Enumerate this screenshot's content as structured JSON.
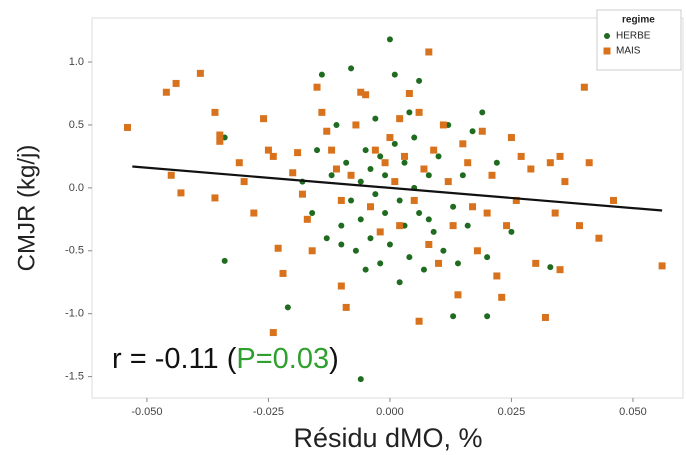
{
  "chart_data": {
    "type": "scatter",
    "x_label": "Résidu dMO, %",
    "y_label": "CMJR (kg/j)",
    "xlim": [
      -0.0613,
      0.0603
    ],
    "ylim": [
      -1.67,
      1.35
    ],
    "xticks": [
      {
        "value": -0.05,
        "label": "-0.050"
      },
      {
        "value": -0.025,
        "label": "-0.025"
      },
      {
        "value": 0,
        "label": "0.000"
      },
      {
        "value": 0.025,
        "label": "0.025"
      },
      {
        "value": 0.05,
        "label": "0.050"
      }
    ],
    "yticks": [
      {
        "value": 1,
        "label": "1.0"
      },
      {
        "value": 0.5,
        "label": "0.5"
      },
      {
        "value": 0,
        "label": "0.0"
      },
      {
        "value": -0.5,
        "label": "-0.5"
      },
      {
        "value": -1,
        "label": "-1.0"
      },
      {
        "value": -1.5,
        "label": "-1.5"
      }
    ],
    "legend_title": "regime",
    "legend_position": "upper right",
    "series": [
      {
        "name": "HERBE",
        "color": "#1f6b1f",
        "marker": "circle",
        "x": [
          -0.034,
          -0.034,
          -0.021,
          -0.018,
          -0.016,
          -0.015,
          -0.014,
          -0.013,
          -0.012,
          -0.011,
          -0.01,
          -0.009,
          -0.008,
          -0.008,
          -0.007,
          -0.006,
          -0.006,
          -0.005,
          -0.005,
          -0.004,
          -0.004,
          -0.003,
          -0.003,
          -0.002,
          -0.002,
          -0.001,
          -0.001,
          0.0,
          0.0,
          0.001,
          0.001,
          0.002,
          0.002,
          0.003,
          0.003,
          0.004,
          0.004,
          0.005,
          0.005,
          0.006,
          0.006,
          0.007,
          0.008,
          0.009,
          0.01,
          0.011,
          0.012,
          0.013,
          0.014,
          0.015,
          0.016,
          0.017,
          0.019,
          0.02,
          0.02,
          0.013,
          0.022,
          0.025,
          0.033,
          -0.006,
          -0.01,
          0.008
        ],
        "values": [
          0.4,
          -0.58,
          -0.95,
          0.05,
          -0.2,
          0.3,
          0.9,
          -0.4,
          0.1,
          0.5,
          -0.3,
          0.2,
          -0.1,
          0.95,
          -0.5,
          0.05,
          -0.25,
          0.3,
          -0.65,
          0.15,
          -0.4,
          0.55,
          -0.05,
          0.25,
          -0.6,
          -0.2,
          0.1,
          1.18,
          -0.45,
          0.9,
          0.35,
          -0.1,
          -0.75,
          0.2,
          -0.3,
          0.6,
          -0.55,
          0.0,
          0.4,
          -0.2,
          0.85,
          -0.65,
          0.1,
          -0.35,
          0.25,
          -0.5,
          0.5,
          -0.15,
          -0.6,
          0.1,
          -0.3,
          0.45,
          0.6,
          -0.55,
          -1.02,
          -1.02,
          0.2,
          -0.35,
          -0.63,
          -1.52,
          -0.45,
          -0.25
        ]
      },
      {
        "name": "MAIS",
        "color": "#d9721c",
        "marker": "square",
        "x": [
          -0.054,
          -0.046,
          -0.044,
          -0.039,
          -0.045,
          -0.043,
          -0.036,
          -0.035,
          -0.035,
          -0.031,
          -0.036,
          -0.03,
          -0.028,
          -0.026,
          -0.025,
          -0.024,
          -0.023,
          -0.022,
          -0.024,
          -0.02,
          -0.019,
          -0.018,
          -0.017,
          -0.016,
          -0.015,
          -0.014,
          -0.013,
          -0.012,
          -0.011,
          -0.01,
          -0.01,
          -0.009,
          -0.008,
          -0.007,
          -0.006,
          -0.005,
          -0.004,
          -0.003,
          -0.002,
          -0.001,
          0.0,
          0.001,
          0.002,
          0.002,
          0.003,
          0.004,
          0.005,
          0.006,
          0.007,
          0.008,
          0.008,
          0.006,
          0.009,
          0.01,
          0.011,
          0.012,
          0.013,
          0.014,
          0.015,
          0.016,
          0.017,
          0.018,
          0.019,
          0.02,
          0.021,
          0.022,
          0.023,
          0.024,
          0.025,
          0.026,
          0.027,
          0.029,
          0.03,
          0.032,
          0.033,
          0.034,
          0.035,
          0.035,
          0.036,
          0.039,
          0.04,
          0.041,
          0.043,
          0.046,
          0.056
        ],
        "values": [
          0.48,
          0.76,
          0.83,
          0.91,
          0.1,
          -0.04,
          0.6,
          0.42,
          0.37,
          0.2,
          -0.08,
          0.05,
          -0.2,
          0.55,
          0.3,
          0.25,
          -0.48,
          -0.68,
          -1.15,
          0.12,
          0.28,
          -0.05,
          -0.25,
          -0.5,
          0.8,
          0.6,
          0.45,
          0.3,
          0.15,
          -0.1,
          -0.78,
          -0.95,
          0.1,
          0.5,
          0.76,
          0.74,
          -0.15,
          0.3,
          -0.35,
          0.2,
          0.4,
          0.05,
          0.55,
          -0.3,
          0.25,
          0.75,
          -0.1,
          0.6,
          0.15,
          1.08,
          -0.45,
          -1.06,
          0.3,
          -0.6,
          0.5,
          0.05,
          -0.3,
          -0.85,
          0.35,
          0.2,
          -0.15,
          -0.5,
          0.45,
          -0.2,
          0.1,
          -0.7,
          -0.87,
          -0.3,
          0.4,
          -0.1,
          0.25,
          0.15,
          -0.6,
          -1.03,
          0.2,
          -0.2,
          -0.65,
          0.25,
          0.05,
          -0.3,
          0.8,
          0.2,
          -0.4,
          -0.1,
          -0.62
        ]
      }
    ],
    "trend_line": {
      "color": "#111111",
      "x": [
        -0.053,
        0.056
      ],
      "y": [
        0.17,
        -0.18
      ]
    },
    "annotation": [
      {
        "text": "r = -0.11 (",
        "color": "#111111"
      },
      {
        "text": "P=0.03",
        "color": "#2ea02e"
      },
      {
        "text": ")",
        "color": "#111111"
      }
    ]
  }
}
